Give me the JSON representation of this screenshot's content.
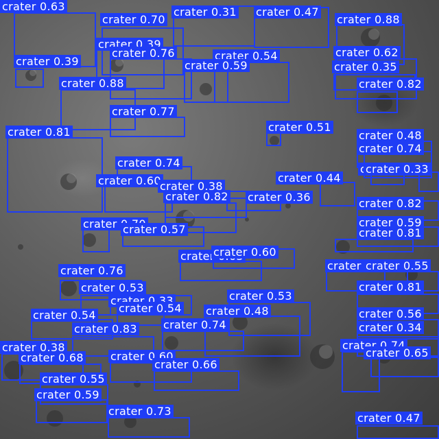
{
  "image": {
    "description_colors": {
      "box": "#1f3df5",
      "text": "#ffffff",
      "terrain": "#5a5a5a"
    }
  },
  "detections": [
    {
      "label": "crater",
      "score": "0.63"
    },
    {
      "label": "crater",
      "score": "0.70"
    },
    {
      "label": "crater",
      "score": "0.31"
    },
    {
      "label": "crater",
      "score": "0.47"
    },
    {
      "label": "crater",
      "score": "0.88"
    },
    {
      "label": "crater",
      "score": "0.39"
    },
    {
      "label": "crater",
      "score": "0.76"
    },
    {
      "label": "crater",
      "score": "0.54"
    },
    {
      "label": "crater",
      "score": "0.62"
    },
    {
      "label": "crater",
      "score": "0.39"
    },
    {
      "label": "crater",
      "score": "0.59"
    },
    {
      "label": "crater",
      "score": "0.35"
    },
    {
      "label": "crater",
      "score": "0.88"
    },
    {
      "label": "crater",
      "score": "0.82"
    },
    {
      "label": "crater",
      "score": "0.77"
    },
    {
      "label": "crater",
      "score": "0.81"
    },
    {
      "label": "crater",
      "score": "0.51"
    },
    {
      "label": "crater",
      "score": "0.48"
    },
    {
      "label": "crater",
      "score": "0.74"
    },
    {
      "label": "crater",
      "score": "0.74"
    },
    {
      "label": "crater",
      "score": "0.42"
    },
    {
      "label": "crater",
      "score": "0.33"
    },
    {
      "label": "crater",
      "score": "0.44"
    },
    {
      "label": "crater",
      "score": "0.60"
    },
    {
      "label": "crater",
      "score": "0.38"
    },
    {
      "label": "crater",
      "score": "0.82"
    },
    {
      "label": "crater",
      "score": "0.36"
    },
    {
      "label": "crater",
      "score": "0.82"
    },
    {
      "label": "crater",
      "score": "0.70"
    },
    {
      "label": "crater",
      "score": "0.57"
    },
    {
      "label": "crater",
      "score": "0.59"
    },
    {
      "label": "crater",
      "score": "0.81"
    },
    {
      "label": "crater",
      "score": "0.63"
    },
    {
      "label": "crater",
      "score": "0.60"
    },
    {
      "label": "crater",
      "score": "0.61"
    },
    {
      "label": "crater",
      "score": "0.55"
    },
    {
      "label": "crater",
      "score": "0.76"
    },
    {
      "label": "crater",
      "score": "0.53"
    },
    {
      "label": "crater",
      "score": "0.81"
    },
    {
      "label": "crater",
      "score": "0.33"
    },
    {
      "label": "crater",
      "score": "0.53"
    },
    {
      "label": "crater",
      "score": "0.54"
    },
    {
      "label": "crater",
      "score": "0.54"
    },
    {
      "label": "crater",
      "score": "0.48"
    },
    {
      "label": "crater",
      "score": "0.56"
    },
    {
      "label": "crater",
      "score": "0.83"
    },
    {
      "label": "crater",
      "score": "0.74"
    },
    {
      "label": "crater",
      "score": "0.34"
    },
    {
      "label": "crater",
      "score": "0.38"
    },
    {
      "label": "crater",
      "score": "0.68"
    },
    {
      "label": "crater",
      "score": "0.60"
    },
    {
      "label": "crater",
      "score": "0.74"
    },
    {
      "label": "crater",
      "score": "0.65"
    },
    {
      "label": "crater",
      "score": "0.55"
    },
    {
      "label": "crater",
      "score": "0.66"
    },
    {
      "label": "crater",
      "score": "0.59"
    },
    {
      "label": "crater",
      "score": "0.73"
    },
    {
      "label": "crater",
      "score": "0.47"
    }
  ]
}
